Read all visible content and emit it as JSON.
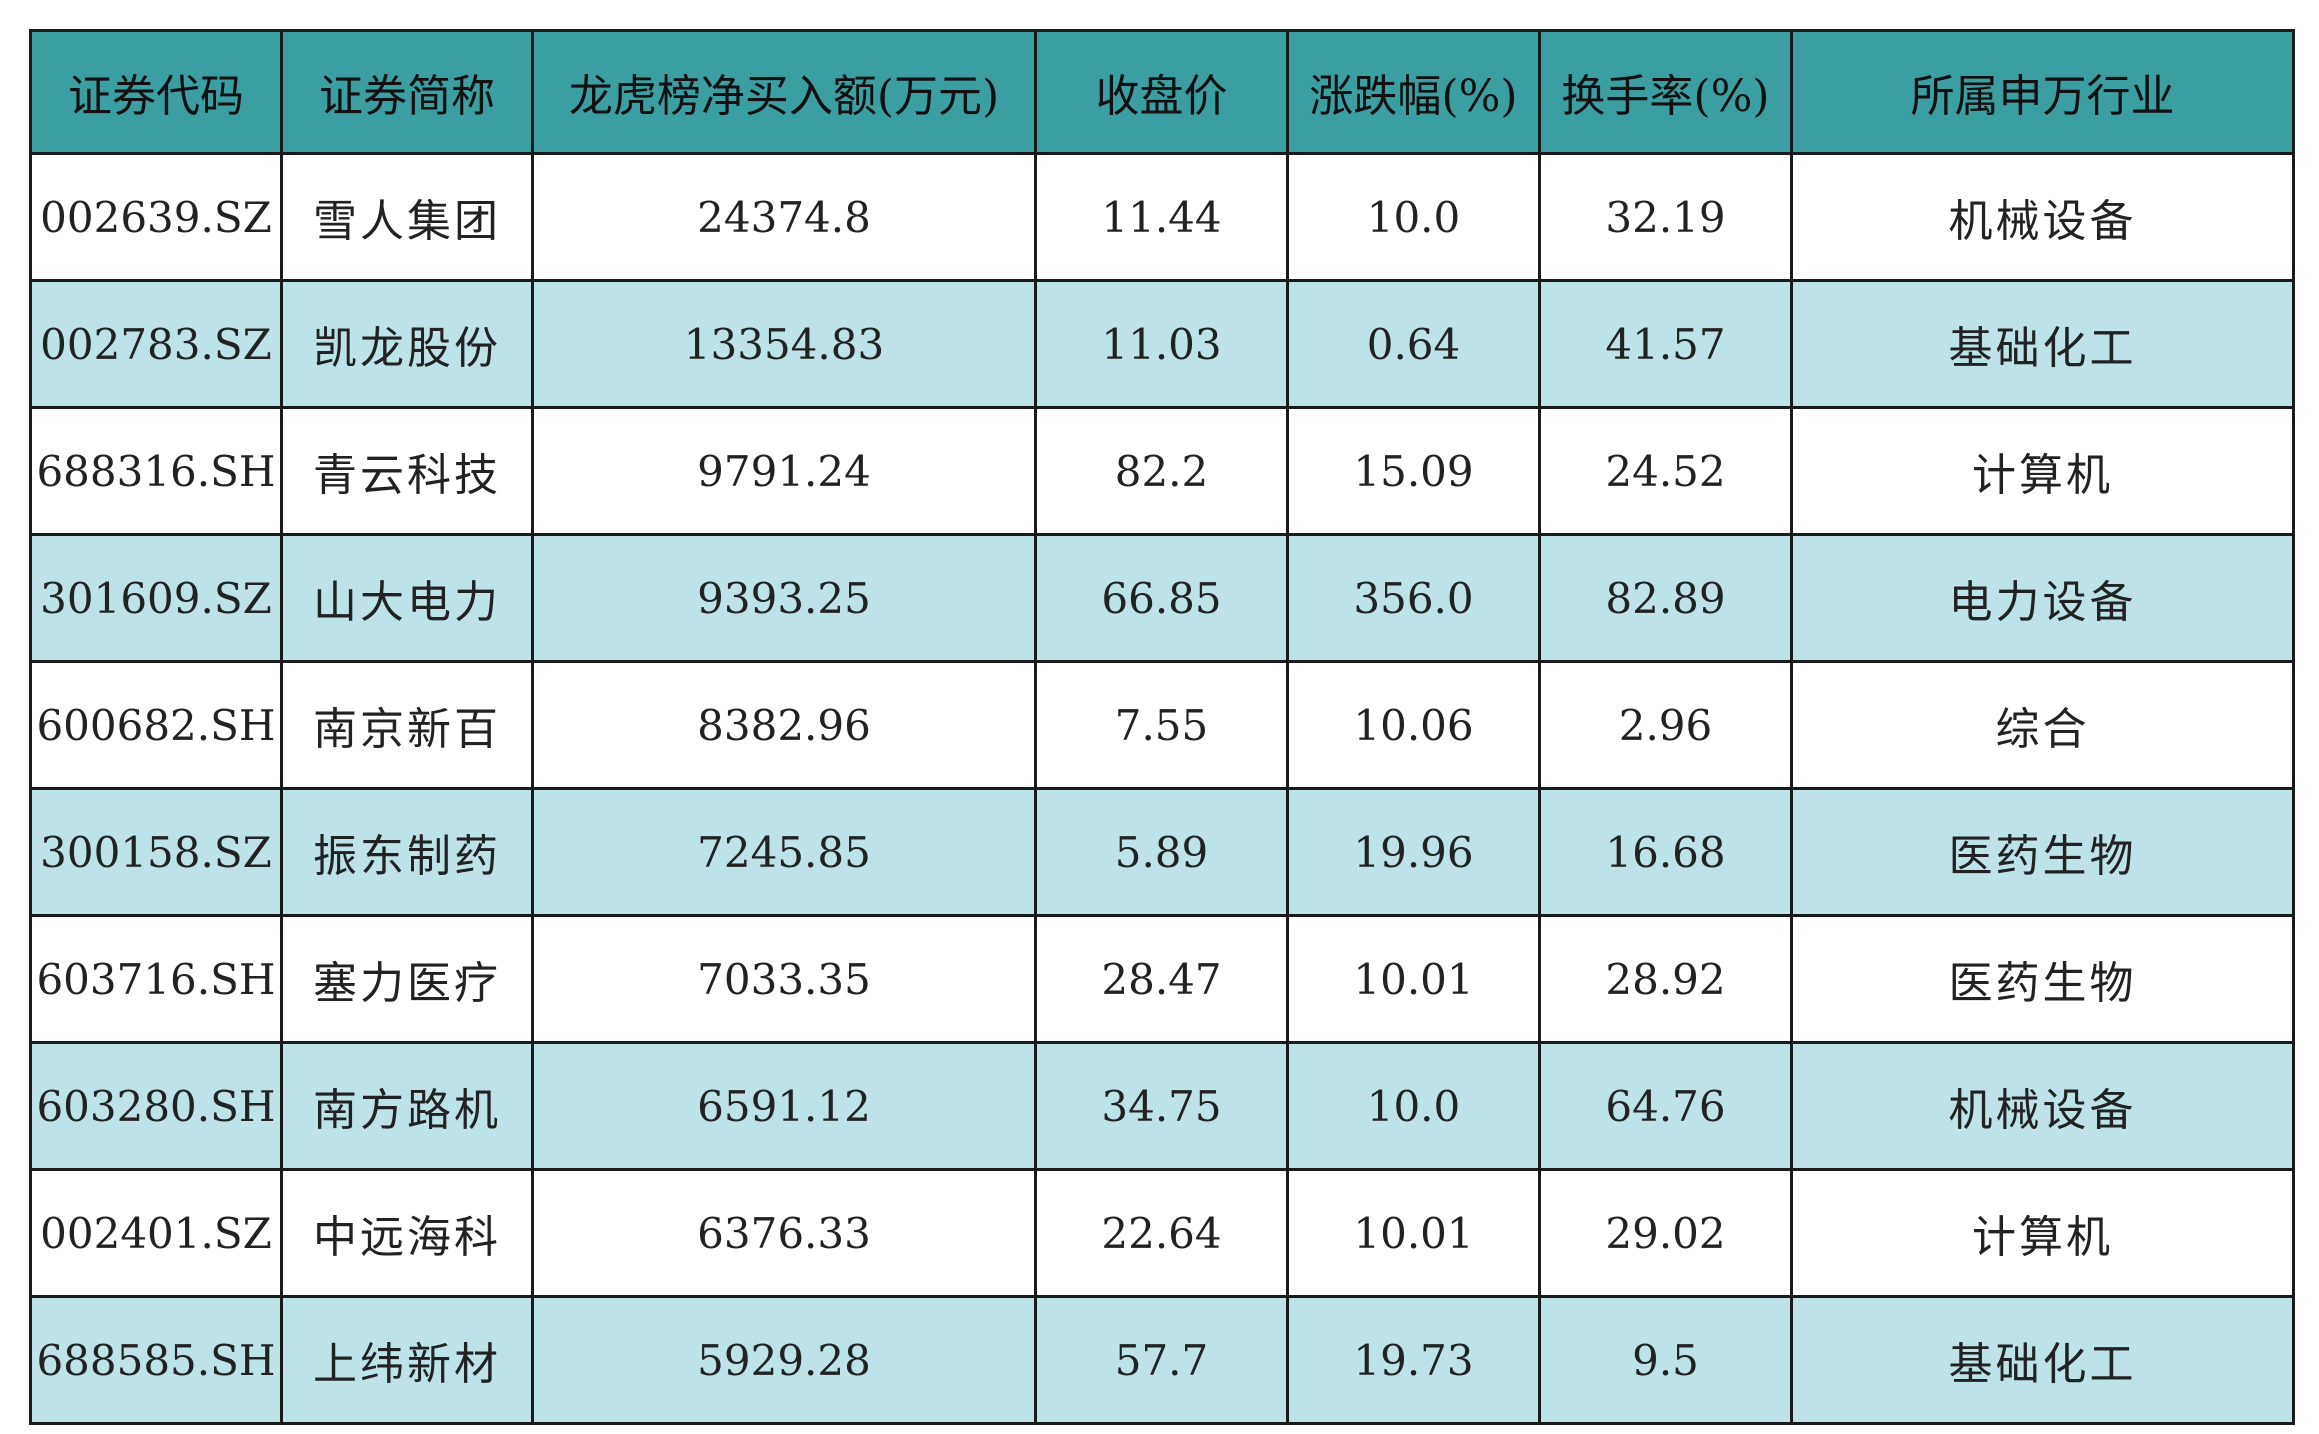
{
  "colors": {
    "header_bg": "#3b9ea1",
    "row_alt_bg": "#bde3e8",
    "row_bg": "#ffffff",
    "border": "#1a1a1a"
  },
  "headers": [
    "证券代码",
    "证券简称",
    "龙虎榜净买入额(万元)",
    "收盘价",
    "涨跌幅(%)",
    "换手率(%)",
    "所属申万行业"
  ],
  "rows": [
    [
      "002639.SZ",
      "雪人集团",
      "24374.8",
      "11.44",
      "10.0",
      "32.19",
      "机械设备"
    ],
    [
      "002783.SZ",
      "凯龙股份",
      "13354.83",
      "11.03",
      "0.64",
      "41.57",
      "基础化工"
    ],
    [
      "688316.SH",
      "青云科技",
      "9791.24",
      "82.2",
      "15.09",
      "24.52",
      "计算机"
    ],
    [
      "301609.SZ",
      "山大电力",
      "9393.25",
      "66.85",
      "356.0",
      "82.89",
      "电力设备"
    ],
    [
      "600682.SH",
      "南京新百",
      "8382.96",
      "7.55",
      "10.06",
      "2.96",
      "综合"
    ],
    [
      "300158.SZ",
      "振东制药",
      "7245.85",
      "5.89",
      "19.96",
      "16.68",
      "医药生物"
    ],
    [
      "603716.SH",
      "塞力医疗",
      "7033.35",
      "28.47",
      "10.01",
      "28.92",
      "医药生物"
    ],
    [
      "603280.SH",
      "南方路机",
      "6591.12",
      "34.75",
      "10.0",
      "64.76",
      "机械设备"
    ],
    [
      "002401.SZ",
      "中远海科",
      "6376.33",
      "22.64",
      "10.01",
      "29.02",
      "计算机"
    ],
    [
      "688585.SH",
      "上纬新材",
      "5929.28",
      "57.7",
      "19.73",
      "9.5",
      "基础化工"
    ]
  ]
}
